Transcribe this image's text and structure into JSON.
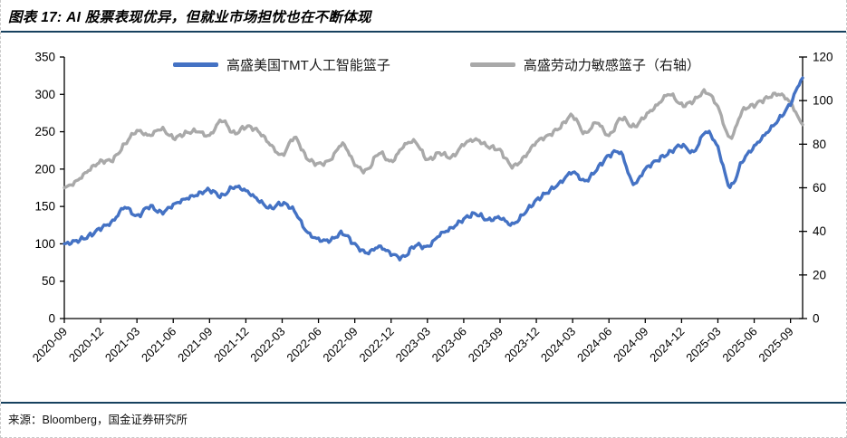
{
  "figure": {
    "title": "图表 17: AI 股票表现优异，但就业市场担忧也在不断体现",
    "source": "来源：Bloomberg，国金证券研究所",
    "accent_color": "#17415f",
    "axis_color": "#000000"
  },
  "chart_data": {
    "type": "line",
    "grid": false,
    "legend_position": "top",
    "left_axis": {
      "min": 0,
      "max": 350,
      "step": 50,
      "tick_labels": [
        "0",
        "50",
        "100",
        "150",
        "200",
        "250",
        "300",
        "350"
      ]
    },
    "right_axis": {
      "min": 0,
      "max": 120,
      "step": 20,
      "tick_labels": [
        "0",
        "20",
        "40",
        "60",
        "80",
        "100",
        "120"
      ]
    },
    "x_tick_labels": [
      "2020-09",
      "2020-12",
      "2021-03",
      "2021-06",
      "2021-09",
      "2021-12",
      "2022-03",
      "2022-06",
      "2022-09",
      "2022-12",
      "2023-03",
      "2023-06",
      "2023-09",
      "2023-12",
      "2024-03",
      "2024-06",
      "2024-09",
      "2024-12",
      "2025-03",
      "2025-06",
      "2025-09"
    ],
    "months": [
      "2020-09",
      "2020-10",
      "2020-11",
      "2020-12",
      "2021-01",
      "2021-02",
      "2021-03",
      "2021-04",
      "2021-05",
      "2021-06",
      "2021-07",
      "2021-08",
      "2021-09",
      "2021-10",
      "2021-11",
      "2021-12",
      "2022-01",
      "2022-02",
      "2022-03",
      "2022-04",
      "2022-05",
      "2022-06",
      "2022-07",
      "2022-08",
      "2022-09",
      "2022-10",
      "2022-11",
      "2022-12",
      "2023-01",
      "2023-02",
      "2023-03",
      "2023-04",
      "2023-05",
      "2023-06",
      "2023-07",
      "2023-08",
      "2023-09",
      "2023-10",
      "2023-11",
      "2023-12",
      "2024-01",
      "2024-02",
      "2024-03",
      "2024-04",
      "2024-05",
      "2024-06",
      "2024-07",
      "2024-08",
      "2024-09",
      "2024-10",
      "2024-11",
      "2024-12",
      "2025-01",
      "2025-02",
      "2025-03",
      "2025-04",
      "2025-05",
      "2025-06",
      "2025-07",
      "2025-08",
      "2025-09",
      "2025-10"
    ],
    "series": [
      {
        "name": "高盛美国TMT人工智能篮子",
        "axis": "left",
        "color": "#4472C4",
        "values": [
          100,
          104,
          110,
          121,
          130,
          149,
          137,
          150,
          142,
          152,
          160,
          166,
          172,
          164,
          176,
          171,
          159,
          148,
          154,
          144,
          117,
          106,
          105,
          114,
          99,
          88,
          96,
          87,
          82,
          98,
          96,
          112,
          121,
          133,
          140,
          132,
          135,
          126,
          141,
          158,
          170,
          182,
          196,
          184,
          200,
          218,
          221,
          181,
          200,
          212,
          222,
          232,
          223,
          250,
          228,
          177,
          210,
          230,
          248,
          266,
          288,
          322
        ]
      },
      {
        "name": "高盛劳动力敏感篮子（右轴）",
        "axis": "right",
        "color": "#A9A9A9",
        "values": [
          60,
          63,
          68,
          72,
          73,
          80,
          86,
          84,
          87,
          83,
          85,
          86,
          84,
          91,
          85,
          88,
          86,
          80,
          75,
          83,
          74,
          71,
          73,
          80,
          71,
          68,
          76,
          72,
          79,
          81,
          73,
          76,
          74,
          80,
          82,
          79,
          77,
          70,
          74,
          81,
          84,
          88,
          93,
          85,
          90,
          84,
          92,
          88,
          93,
          98,
          103,
          98,
          100,
          104,
          97,
          83,
          95,
          98,
          101,
          103,
          99,
          89
        ]
      }
    ]
  }
}
